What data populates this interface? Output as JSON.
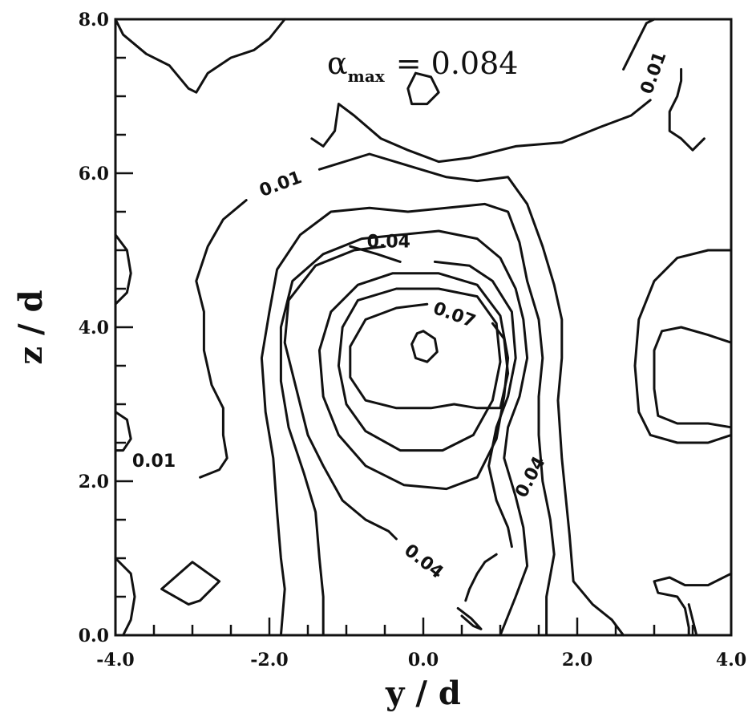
{
  "chart_data": {
    "type": "contour",
    "xlabel": "y / d",
    "ylabel": "z / d",
    "xlim": [
      -4.0,
      4.0
    ],
    "ylim": [
      0.0,
      8.0
    ],
    "xticks": [
      -4.0,
      -2.0,
      0.0,
      2.0,
      4.0
    ],
    "xtick_labels": [
      "-4.0",
      "-2.0",
      "0.0",
      "2.0",
      "4.0"
    ],
    "yticks": [
      0.0,
      2.0,
      4.0,
      6.0,
      8.0
    ],
    "ytick_labels": [
      "0.0",
      "2.0",
      "4.0",
      "6.0",
      "8.0"
    ],
    "annotation": {
      "symbol": "α",
      "subscript": "max",
      "text": "= 0.084"
    },
    "levels": [
      0.01,
      0.02,
      0.03,
      0.04,
      0.05,
      0.06,
      0.07,
      0.08
    ],
    "contour_labels": [
      {
        "text": "0.01",
        "x": 3.0,
        "y": 7.3,
        "angle": -70
      },
      {
        "text": "0.01",
        "x": -1.85,
        "y": 5.85,
        "angle": -20
      },
      {
        "text": "0.01",
        "x": -3.5,
        "y": 2.25,
        "angle": 0
      },
      {
        "text": "0.04",
        "x": -0.45,
        "y": 5.1,
        "angle": 0
      },
      {
        "text": "0.07",
        "x": 0.4,
        "y": 4.15,
        "angle": 20
      },
      {
        "text": "0.04",
        "x": 1.4,
        "y": 2.05,
        "angle": -62
      },
      {
        "text": "0.04",
        "x": 0.0,
        "y": 0.95,
        "angle": 38
      }
    ],
    "contours": [
      {
        "level": 0.01,
        "points": [
          [
            -4.0,
            8.0
          ],
          [
            -3.9,
            7.8
          ],
          [
            -3.6,
            7.55
          ],
          [
            -3.3,
            7.4
          ],
          [
            -3.05,
            7.1
          ],
          [
            -2.95,
            7.05
          ],
          [
            -2.8,
            7.3
          ],
          [
            -2.5,
            7.5
          ],
          [
            -2.2,
            7.6
          ],
          [
            -2.0,
            7.75
          ],
          [
            -1.8,
            8.0
          ]
        ]
      },
      {
        "level": 0.01,
        "points": [
          [
            2.6,
            7.35
          ],
          [
            2.75,
            7.65
          ],
          [
            2.9,
            7.95
          ],
          [
            3.0,
            8.0
          ]
        ]
      },
      {
        "level": 0.01,
        "points": [
          [
            2.95,
            6.95
          ],
          [
            2.7,
            6.75
          ],
          [
            2.3,
            6.6
          ],
          [
            1.8,
            6.4
          ],
          [
            1.2,
            6.35
          ],
          [
            0.6,
            6.2
          ],
          [
            0.2,
            6.15
          ],
          [
            -0.2,
            6.3
          ],
          [
            -0.55,
            6.45
          ],
          [
            -0.9,
            6.75
          ],
          [
            -1.1,
            6.9
          ],
          [
            -1.15,
            6.55
          ],
          [
            -1.3,
            6.35
          ],
          [
            -1.45,
            6.45
          ]
        ]
      },
      {
        "level": 0.01,
        "points": [
          [
            3.35,
            7.35
          ],
          [
            3.35,
            7.2
          ],
          [
            3.3,
            7.0
          ],
          [
            3.2,
            6.8
          ],
          [
            3.2,
            6.55
          ],
          [
            3.35,
            6.45
          ],
          [
            3.5,
            6.3
          ],
          [
            3.65,
            6.45
          ]
        ]
      },
      {
        "level": 0.01,
        "points": [
          [
            -2.3,
            5.65
          ],
          [
            -2.6,
            5.4
          ],
          [
            -2.8,
            5.05
          ],
          [
            -2.95,
            4.6
          ],
          [
            -2.85,
            4.2
          ],
          [
            -2.85,
            3.7
          ],
          [
            -2.75,
            3.25
          ],
          [
            -2.6,
            2.95
          ],
          [
            -2.6,
            2.6
          ],
          [
            -2.55,
            2.3
          ],
          [
            -2.65,
            2.15
          ],
          [
            -2.9,
            2.05
          ]
        ]
      },
      {
        "level": 0.01,
        "points": [
          [
            -1.35,
            6.05
          ],
          [
            -0.7,
            6.25
          ],
          [
            -0.2,
            6.1
          ],
          [
            0.3,
            5.95
          ],
          [
            0.7,
            5.9
          ],
          [
            1.1,
            5.95
          ],
          [
            1.35,
            5.6
          ],
          [
            1.55,
            5.05
          ],
          [
            1.7,
            4.55
          ],
          [
            1.8,
            4.1
          ],
          [
            1.8,
            3.6
          ],
          [
            1.75,
            3.05
          ],
          [
            1.8,
            2.3
          ],
          [
            1.85,
            1.8
          ],
          [
            1.9,
            1.3
          ],
          [
            1.95,
            0.7
          ],
          [
            2.2,
            0.4
          ],
          [
            2.45,
            0.2
          ],
          [
            2.6,
            0.0
          ]
        ]
      },
      {
        "level": 0.02,
        "points": [
          [
            -1.85,
            0.0
          ],
          [
            -1.8,
            0.6
          ],
          [
            -1.85,
            1.0
          ],
          [
            -1.9,
            1.6
          ],
          [
            -1.95,
            2.3
          ],
          [
            -2.05,
            2.9
          ],
          [
            -2.1,
            3.6
          ],
          [
            -2.0,
            4.2
          ],
          [
            -1.9,
            4.75
          ],
          [
            -1.6,
            5.2
          ],
          [
            -1.2,
            5.5
          ],
          [
            -0.7,
            5.55
          ],
          [
            -0.2,
            5.5
          ],
          [
            0.3,
            5.55
          ],
          [
            0.8,
            5.6
          ],
          [
            1.1,
            5.5
          ],
          [
            1.25,
            5.1
          ],
          [
            1.35,
            4.6
          ],
          [
            1.5,
            4.1
          ],
          [
            1.55,
            3.6
          ],
          [
            1.5,
            3.1
          ],
          [
            1.5,
            2.6
          ],
          [
            1.55,
            2.0
          ],
          [
            1.65,
            1.5
          ],
          [
            1.7,
            1.05
          ],
          [
            1.6,
            0.5
          ],
          [
            1.6,
            0.0
          ]
        ]
      },
      {
        "level": 0.03,
        "points": [
          [
            -1.3,
            0.0
          ],
          [
            -1.3,
            0.5
          ],
          [
            -1.35,
            1.0
          ],
          [
            -1.4,
            1.6
          ],
          [
            -1.55,
            2.1
          ],
          [
            -1.75,
            2.7
          ],
          [
            -1.85,
            3.3
          ],
          [
            -1.85,
            4.0
          ],
          [
            -1.7,
            4.6
          ],
          [
            -1.3,
            4.95
          ],
          [
            -0.8,
            5.15
          ],
          [
            -0.3,
            5.2
          ],
          [
            0.2,
            5.25
          ],
          [
            0.7,
            5.15
          ],
          [
            1.0,
            4.9
          ],
          [
            1.2,
            4.5
          ],
          [
            1.3,
            4.1
          ],
          [
            1.35,
            3.6
          ],
          [
            1.25,
            3.1
          ],
          [
            1.1,
            2.7
          ],
          [
            1.05,
            2.3
          ],
          [
            1.2,
            1.8
          ],
          [
            1.3,
            1.4
          ],
          [
            1.35,
            0.9
          ],
          [
            1.2,
            0.5
          ],
          [
            1.0,
            0.0
          ]
        ]
      },
      {
        "level": 0.04,
        "points": [
          [
            -0.95,
            5.05
          ],
          [
            -0.6,
            4.95
          ],
          [
            -0.3,
            4.85
          ]
        ]
      },
      {
        "level": 0.04,
        "points": [
          [
            0.15,
            4.85
          ],
          [
            0.6,
            4.8
          ],
          [
            0.9,
            4.6
          ],
          [
            1.15,
            4.2
          ],
          [
            1.2,
            3.6
          ],
          [
            1.1,
            3.1
          ],
          [
            0.95,
            2.7
          ],
          [
            0.85,
            2.2
          ],
          [
            0.95,
            1.75
          ],
          [
            1.1,
            1.4
          ],
          [
            1.15,
            1.15
          ]
        ]
      },
      {
        "level": 0.04,
        "points": [
          [
            -0.5,
            5.05
          ],
          [
            -0.9,
            5.0
          ],
          [
            -1.4,
            4.8
          ],
          [
            -1.75,
            4.35
          ],
          [
            -1.8,
            3.8
          ],
          [
            -1.65,
            3.2
          ],
          [
            -1.5,
            2.6
          ],
          [
            -1.3,
            2.2
          ],
          [
            -1.05,
            1.75
          ],
          [
            -0.75,
            1.5
          ],
          [
            -0.45,
            1.35
          ],
          [
            -0.35,
            1.25
          ]
        ]
      },
      {
        "level": 0.04,
        "points": [
          [
            0.55,
            0.45
          ],
          [
            0.6,
            0.6
          ],
          [
            0.7,
            0.8
          ],
          [
            0.8,
            0.95
          ],
          [
            0.95,
            1.05
          ]
        ]
      },
      {
        "level": 0.04,
        "points": [
          [
            0.45,
            0.35
          ],
          [
            0.62,
            0.22
          ],
          [
            0.75,
            0.08
          ],
          [
            0.65,
            0.12
          ],
          [
            0.5,
            0.25
          ]
        ]
      },
      {
        "level": 0.05,
        "points": [
          [
            -0.4,
            4.7
          ],
          [
            -0.85,
            4.55
          ],
          [
            -1.2,
            4.2
          ],
          [
            -1.35,
            3.7
          ],
          [
            -1.3,
            3.1
          ],
          [
            -1.1,
            2.6
          ],
          [
            -0.75,
            2.2
          ],
          [
            -0.25,
            1.95
          ],
          [
            0.3,
            1.9
          ],
          [
            0.7,
            2.05
          ],
          [
            0.95,
            2.55
          ],
          [
            1.05,
            3.1
          ],
          [
            1.1,
            3.6
          ],
          [
            1.0,
            4.15
          ],
          [
            0.7,
            4.55
          ],
          [
            0.2,
            4.7
          ],
          [
            -0.4,
            4.7
          ]
        ]
      },
      {
        "level": 0.06,
        "points": [
          [
            -0.35,
            4.5
          ],
          [
            -0.85,
            4.35
          ],
          [
            -1.05,
            4.0
          ],
          [
            -1.1,
            3.5
          ],
          [
            -1.0,
            3.0
          ],
          [
            -0.75,
            2.65
          ],
          [
            -0.3,
            2.4
          ],
          [
            0.25,
            2.4
          ],
          [
            0.65,
            2.6
          ],
          [
            0.9,
            3.05
          ],
          [
            1.0,
            3.55
          ],
          [
            0.95,
            4.05
          ],
          [
            0.7,
            4.4
          ],
          [
            0.2,
            4.5
          ],
          [
            -0.35,
            4.5
          ]
        ]
      },
      {
        "level": 0.07,
        "points": [
          [
            0.05,
            4.3
          ],
          [
            -0.35,
            4.25
          ],
          [
            -0.75,
            4.1
          ],
          [
            -0.95,
            3.75
          ],
          [
            -0.95,
            3.35
          ],
          [
            -0.75,
            3.05
          ],
          [
            -0.35,
            2.95
          ],
          [
            0.1,
            2.95
          ],
          [
            0.4,
            3.0
          ],
          [
            0.7,
            2.95
          ],
          [
            1.0,
            2.95
          ],
          [
            1.1,
            3.4
          ],
          [
            1.05,
            3.85
          ],
          [
            0.9,
            4.05
          ]
        ]
      },
      {
        "level": 0.08,
        "points": [
          [
            0.0,
            3.95
          ],
          [
            0.15,
            3.85
          ],
          [
            0.18,
            3.68
          ],
          [
            0.05,
            3.55
          ],
          [
            -0.1,
            3.6
          ],
          [
            -0.15,
            3.78
          ],
          [
            -0.08,
            3.92
          ],
          [
            0.0,
            3.95
          ]
        ]
      },
      {
        "level": 0.01,
        "points": [
          [
            -0.1,
            7.3
          ],
          [
            0.1,
            7.25
          ],
          [
            0.2,
            7.05
          ],
          [
            0.05,
            6.9
          ],
          [
            -0.15,
            6.9
          ],
          [
            -0.2,
            7.1
          ],
          [
            -0.1,
            7.3
          ]
        ]
      },
      {
        "level": 0.01,
        "points": [
          [
            -4.0,
            5.2
          ],
          [
            -3.85,
            5.0
          ],
          [
            -3.8,
            4.7
          ],
          [
            -3.85,
            4.45
          ],
          [
            -4.0,
            4.3
          ]
        ]
      },
      {
        "level": 0.01,
        "points": [
          [
            -4.0,
            2.9
          ],
          [
            -3.85,
            2.8
          ],
          [
            -3.8,
            2.55
          ],
          [
            -3.9,
            2.4
          ],
          [
            -4.0,
            2.4
          ]
        ]
      },
      {
        "level": 0.01,
        "points": [
          [
            -4.0,
            1.0
          ],
          [
            -3.8,
            0.8
          ],
          [
            -3.75,
            0.5
          ],
          [
            -3.8,
            0.2
          ],
          [
            -3.9,
            0.0
          ]
        ]
      },
      {
        "level": 0.01,
        "points": [
          [
            -3.4,
            0.6
          ],
          [
            -3.0,
            0.95
          ],
          [
            -2.65,
            0.7
          ],
          [
            -2.9,
            0.45
          ],
          [
            -3.05,
            0.4
          ],
          [
            -3.4,
            0.6
          ]
        ]
      },
      {
        "level": 0.01,
        "points": [
          [
            4.0,
            5.0
          ],
          [
            3.7,
            5.0
          ],
          [
            3.3,
            4.9
          ],
          [
            3.0,
            4.6
          ],
          [
            2.8,
            4.1
          ],
          [
            2.75,
            3.5
          ],
          [
            2.8,
            2.9
          ],
          [
            2.95,
            2.6
          ],
          [
            3.3,
            2.5
          ],
          [
            3.7,
            2.5
          ],
          [
            4.0,
            2.6
          ]
        ]
      },
      {
        "level": 0.01,
        "points": [
          [
            4.0,
            2.7
          ],
          [
            3.7,
            2.75
          ],
          [
            3.3,
            2.75
          ],
          [
            3.05,
            2.85
          ],
          [
            3.0,
            3.2
          ],
          [
            3.0,
            3.7
          ],
          [
            3.1,
            3.95
          ],
          [
            3.35,
            4.0
          ],
          [
            3.7,
            3.9
          ],
          [
            4.0,
            3.8
          ]
        ]
      },
      {
        "level": 0.01,
        "points": [
          [
            4.0,
            0.8
          ],
          [
            3.7,
            0.65
          ],
          [
            3.4,
            0.65
          ],
          [
            3.2,
            0.75
          ],
          [
            3.0,
            0.7
          ],
          [
            3.05,
            0.55
          ],
          [
            3.3,
            0.5
          ],
          [
            3.4,
            0.35
          ],
          [
            3.45,
            0.1
          ],
          [
            3.45,
            0.0
          ]
        ]
      },
      {
        "level": 0.01,
        "points": [
          [
            3.55,
            0.0
          ],
          [
            3.5,
            0.2
          ],
          [
            3.45,
            0.4
          ]
        ]
      }
    ]
  }
}
